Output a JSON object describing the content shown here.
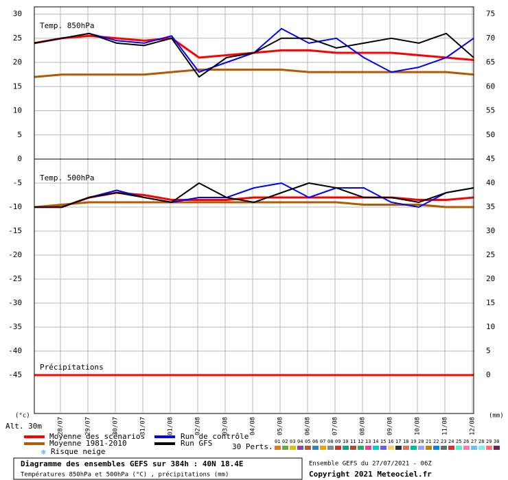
{
  "header": {
    "units_left": "(°c)",
    "altitude": "Alt. 30m",
    "units_right": "(mm)",
    "box_title": "Diagramme des ensembles GEFS sur 384h : 40N 18.4E",
    "box_subtitle": "Températures 850hPa et 500hPa (°C) , précipitations (mm)",
    "run_info": "Ensemble GEFS du 27/07/2021 - 06Z",
    "copyright": "Copyright 2021 Meteociel.fr"
  },
  "legend": {
    "snow": "Risque neige",
    "perts_label": "30 Perts.",
    "members": [
      {
        "label": "01",
        "color": "#e07a2a"
      },
      {
        "label": "02",
        "color": "#6aa84f"
      },
      {
        "label": "03",
        "color": "#d4c400"
      },
      {
        "label": "04",
        "color": "#8e44ad"
      },
      {
        "label": "05",
        "color": "#b06030"
      },
      {
        "label": "06",
        "color": "#2e86c1"
      },
      {
        "label": "07",
        "color": "#f39c12"
      },
      {
        "label": "08",
        "color": "#7f8c8d"
      },
      {
        "label": "09",
        "color": "#c0392b"
      },
      {
        "label": "10",
        "color": "#16a085"
      },
      {
        "label": "11",
        "color": "#a0522d"
      },
      {
        "label": "12",
        "color": "#27ae60"
      },
      {
        "label": "13",
        "color": "#e84393"
      },
      {
        "label": "14",
        "color": "#00cec9"
      },
      {
        "label": "15",
        "color": "#6c5ce7"
      },
      {
        "label": "16",
        "color": "#fdcb6e"
      },
      {
        "label": "17",
        "color": "#2d3436"
      },
      {
        "label": "18",
        "color": "#e17055"
      },
      {
        "label": "19",
        "color": "#00b894"
      },
      {
        "label": "20",
        "color": "#a29bfe"
      },
      {
        "label": "21",
        "color": "#b8860b"
      },
      {
        "label": "22",
        "color": "#0984e3"
      },
      {
        "label": "23",
        "color": "#636e72"
      },
      {
        "label": "24",
        "color": "#d63031"
      },
      {
        "label": "25",
        "color": "#55efc4"
      },
      {
        "label": "26",
        "color": "#fd79a8"
      },
      {
        "label": "27",
        "color": "#74b9ff"
      },
      {
        "label": "28",
        "color": "#81ecec"
      },
      {
        "label": "29",
        "color": "#ff7675"
      },
      {
        "label": "30",
        "color": "#6d214f"
      }
    ]
  },
  "chart_data": [
    {
      "type": "line",
      "title": "Temp. 850hPa",
      "x": [
        0.05,
        1.05,
        2.05,
        3.05,
        4.05,
        5.05,
        6.05,
        7.05,
        8.05,
        9.05,
        10.05,
        11.05,
        12.05,
        13.05,
        14.05,
        15.05,
        16.05
      ],
      "xlim": [
        0.05,
        16.05
      ],
      "xticks": [
        1,
        2,
        3,
        4,
        5,
        6,
        7,
        8,
        9,
        10,
        11,
        12,
        13,
        14,
        15,
        16
      ],
      "ylim": [
        0,
        31.5
      ],
      "yticks": [
        0,
        5,
        10,
        15,
        20,
        25,
        30
      ],
      "y2lim": [
        45,
        76.5
      ],
      "y2ticks": [
        45,
        50,
        55,
        60,
        65,
        70,
        75
      ],
      "grid": true,
      "series": [
        {
          "name": "Moyenne des scénarios",
          "color": "#ff0000",
          "values": [
            24,
            25,
            25.5,
            25,
            24.5,
            25,
            21,
            21.5,
            22,
            22.5,
            22.5,
            22,
            22,
            22,
            21.5,
            21,
            20.5
          ]
        },
        {
          "name": "Moyenne 1981-2010",
          "color": "#b35900",
          "values": [
            17,
            17.5,
            17.5,
            17.5,
            17.5,
            18,
            18.5,
            18.5,
            18.5,
            18.5,
            18,
            18,
            18,
            18,
            18,
            18,
            17.5
          ]
        },
        {
          "name": "Run de contrôle",
          "color": "#0000ff",
          "values": [
            24,
            25,
            26,
            24.5,
            24,
            25.5,
            18,
            20,
            22,
            27,
            24,
            25,
            21,
            18,
            19,
            21,
            25
          ]
        },
        {
          "name": "Run GFS",
          "color": "#000000",
          "values": [
            24,
            25,
            26,
            24,
            23.5,
            25,
            17,
            21,
            22,
            25,
            25,
            23,
            24,
            25,
            24,
            26,
            21
          ]
        }
      ]
    },
    {
      "type": "line",
      "title": "Temp. 500hPa",
      "subtitle": "Précipitations",
      "x": [
        0.05,
        1.05,
        2.05,
        3.05,
        4.05,
        5.05,
        6.05,
        7.05,
        8.05,
        9.05,
        10.05,
        11.05,
        12.05,
        13.05,
        14.05,
        15.05,
        16.05
      ],
      "xlim": [
        0.05,
        16.05
      ],
      "xticks": [
        {
          "value": 1,
          "label": "28/07"
        },
        {
          "value": 2,
          "label": "29/07"
        },
        {
          "value": 3,
          "label": "30/07"
        },
        {
          "value": 4,
          "label": "31/07"
        },
        {
          "value": 5,
          "label": "01/08"
        },
        {
          "value": 6,
          "label": "02/08"
        },
        {
          "value": 7,
          "label": "03/08"
        },
        {
          "value": 8,
          "label": "04/08"
        },
        {
          "value": 9,
          "label": "05/08"
        },
        {
          "value": 10,
          "label": "06/08"
        },
        {
          "value": 11,
          "label": "07/08"
        },
        {
          "value": 12,
          "label": "08/08"
        },
        {
          "value": 13,
          "label": "09/08"
        },
        {
          "value": 14,
          "label": "10/08"
        },
        {
          "value": 15,
          "label": "11/08"
        },
        {
          "value": 16,
          "label": "12/08"
        }
      ],
      "ylim": [
        -53,
        0
      ],
      "yticks": [
        -5,
        -10,
        -15,
        -20,
        -25,
        -30,
        -35,
        -40,
        -45
      ],
      "y2lim": [
        -8,
        45
      ],
      "y2ticks": [
        40,
        35,
        30,
        25,
        20,
        15,
        10,
        5,
        0
      ],
      "grid": true,
      "series": [
        {
          "color": "#ff0000",
          "values": [
            -10,
            -10,
            -8,
            -7,
            -7.5,
            -8.5,
            -8.5,
            -8.5,
            -8,
            -8,
            -8,
            -8,
            -8,
            -8,
            -8.5,
            -8.5,
            -8
          ]
        },
        {
          "color": "#b35900",
          "values": [
            -10,
            -9.5,
            -9,
            -9,
            -9,
            -9,
            -9,
            -9,
            -9,
            -9,
            -9,
            -9,
            -9.5,
            -9.5,
            -9.5,
            -10,
            -10
          ]
        },
        {
          "color": "#0000ff",
          "values": [
            -10,
            -10,
            -8,
            -6.5,
            -8,
            -9,
            -8,
            -8,
            -6,
            -5,
            -8,
            -6,
            -6,
            -9,
            -10,
            -7,
            -6
          ]
        },
        {
          "color": "#000000",
          "values": [
            -10,
            -10,
            -8,
            -7,
            -8,
            -9,
            -5,
            -8,
            -9,
            -7,
            -5,
            -6,
            -8,
            -8,
            -9,
            -7,
            -6
          ]
        },
        {
          "name": "Précipitations",
          "color": "#ff0000",
          "axis": "y2",
          "values": [
            0,
            0,
            0,
            0,
            0,
            0,
            0,
            0,
            0,
            0,
            0,
            0,
            0,
            0,
            0,
            0,
            0
          ]
        }
      ]
    }
  ]
}
